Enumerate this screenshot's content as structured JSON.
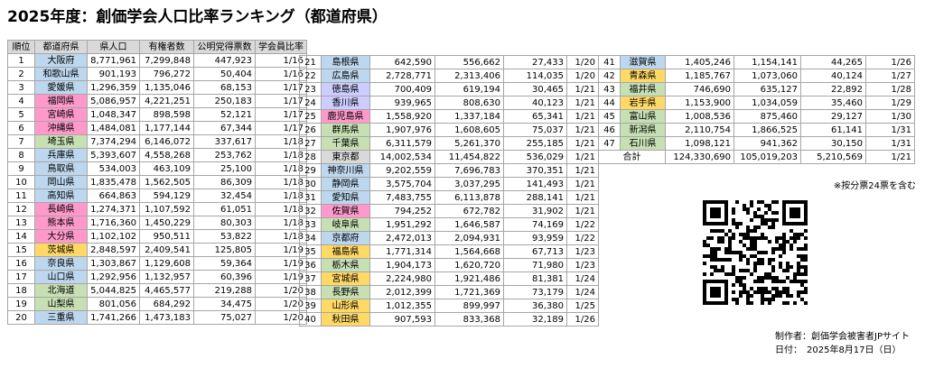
{
  "title": "2025年度：創価学会人口比率ランキング（都道府県）",
  "headers": [
    "順位",
    "都道府県",
    "県人口",
    "有権者数",
    "公明党得票数",
    "学会員比率"
  ],
  "colors": {
    "blue": "#bdd7ee",
    "pink": "#ff99cc",
    "purple": "#ccccff",
    "green": "#c6e0b4",
    "yellow": "#ffd966",
    "gray": "#d9d9d9"
  },
  "rows": [
    {
      "rank": "1",
      "pref": "大阪府",
      "pop": "8,771,961",
      "voters": "7,299,848",
      "votes": "447,923",
      "ratio": "1/16",
      "color": "blue"
    },
    {
      "rank": "2",
      "pref": "和歌山県",
      "pop": "901,193",
      "voters": "796,272",
      "votes": "50,404",
      "ratio": "1/16",
      "color": "blue"
    },
    {
      "rank": "3",
      "pref": "愛媛県",
      "pop": "1,296,359",
      "voters": "1,135,046",
      "votes": "68,153",
      "ratio": "1/17",
      "color": "blue"
    },
    {
      "rank": "4",
      "pref": "福岡県",
      "pop": "5,086,957",
      "voters": "4,221,251",
      "votes": "250,183",
      "ratio": "1/17",
      "color": "pink"
    },
    {
      "rank": "5",
      "pref": "宮崎県",
      "pop": "1,048,347",
      "voters": "898,598",
      "votes": "52,121",
      "ratio": "1/17",
      "color": "pink"
    },
    {
      "rank": "6",
      "pref": "沖縄県",
      "pop": "1,484,081",
      "voters": "1,177,144",
      "votes": "67,344",
      "ratio": "1/17",
      "color": "pink"
    },
    {
      "rank": "7",
      "pref": "埼玉県",
      "pop": "7,374,294",
      "voters": "6,146,072",
      "votes": "337,617",
      "ratio": "1/18",
      "color": "green"
    },
    {
      "rank": "8",
      "pref": "兵庫県",
      "pop": "5,393,607",
      "voters": "4,558,268",
      "votes": "253,762",
      "ratio": "1/18",
      "color": "blue"
    },
    {
      "rank": "9",
      "pref": "鳥取県",
      "pop": "534,003",
      "voters": "463,109",
      "votes": "25,100",
      "ratio": "1/18",
      "color": "blue"
    },
    {
      "rank": "10",
      "pref": "岡山県",
      "pop": "1,835,478",
      "voters": "1,562,505",
      "votes": "86,309",
      "ratio": "1/18",
      "color": "blue"
    },
    {
      "rank": "11",
      "pref": "高知県",
      "pop": "664,863",
      "voters": "594,129",
      "votes": "32,454",
      "ratio": "1/18",
      "color": "blue"
    },
    {
      "rank": "12",
      "pref": "長崎県",
      "pop": "1,274,371",
      "voters": "1,107,592",
      "votes": "61,051",
      "ratio": "1/18",
      "color": "pink"
    },
    {
      "rank": "13",
      "pref": "熊本県",
      "pop": "1,716,360",
      "voters": "1,450,229",
      "votes": "80,303",
      "ratio": "1/18",
      "color": "pink"
    },
    {
      "rank": "14",
      "pref": "大分県",
      "pop": "1,102,102",
      "voters": "950,511",
      "votes": "53,822",
      "ratio": "1/18",
      "color": "pink"
    },
    {
      "rank": "15",
      "pref": "茨城県",
      "pop": "2,848,597",
      "voters": "2,409,541",
      "votes": "125,805",
      "ratio": "1/19",
      "color": "yellow"
    },
    {
      "rank": "16",
      "pref": "奈良県",
      "pop": "1,303,867",
      "voters": "1,129,608",
      "votes": "59,364",
      "ratio": "1/19",
      "color": "blue"
    },
    {
      "rank": "17",
      "pref": "山口県",
      "pop": "1,292,956",
      "voters": "1,132,957",
      "votes": "60,396",
      "ratio": "1/19",
      "color": "blue"
    },
    {
      "rank": "18",
      "pref": "北海道",
      "pop": "5,044,825",
      "voters": "4,465,577",
      "votes": "219,288",
      "ratio": "1/20",
      "color": "green"
    },
    {
      "rank": "19",
      "pref": "山梨県",
      "pop": "801,056",
      "voters": "684,292",
      "votes": "34,475",
      "ratio": "1/20",
      "color": "green"
    },
    {
      "rank": "20",
      "pref": "三重県",
      "pop": "1,741,266",
      "voters": "1,473,183",
      "votes": "75,027",
      "ratio": "1/20",
      "color": "blue"
    },
    {
      "rank": "21",
      "pref": "島根県",
      "pop": "642,590",
      "voters": "556,662",
      "votes": "27,433",
      "ratio": "1/20",
      "color": "blue"
    },
    {
      "rank": "22",
      "pref": "広島県",
      "pop": "2,728,771",
      "voters": "2,313,406",
      "votes": "114,035",
      "ratio": "1/20",
      "color": "blue"
    },
    {
      "rank": "23",
      "pref": "徳島県",
      "pop": "700,409",
      "voters": "619,194",
      "votes": "30,465",
      "ratio": "1/21",
      "color": "purple"
    },
    {
      "rank": "24",
      "pref": "香川県",
      "pop": "939,965",
      "voters": "808,630",
      "votes": "40,123",
      "ratio": "1/21",
      "color": "purple"
    },
    {
      "rank": "25",
      "pref": "鹿児島県",
      "pop": "1,558,920",
      "voters": "1,337,184",
      "votes": "65,341",
      "ratio": "1/21",
      "color": "pink"
    },
    {
      "rank": "26",
      "pref": "群馬県",
      "pop": "1,907,976",
      "voters": "1,608,605",
      "votes": "75,037",
      "ratio": "1/21",
      "color": "green"
    },
    {
      "rank": "27",
      "pref": "千葉県",
      "pop": "6,311,579",
      "voters": "5,261,370",
      "votes": "255,185",
      "ratio": "1/21",
      "color": "green"
    },
    {
      "rank": "28",
      "pref": "東京都",
      "pop": "14,002,534",
      "voters": "11,454,822",
      "votes": "536,029",
      "ratio": "1/21",
      "color": "gray"
    },
    {
      "rank": "29",
      "pref": "神奈川県",
      "pop": "9,202,559",
      "voters": "7,696,783",
      "votes": "370,351",
      "ratio": "1/21",
      "color": "blue"
    },
    {
      "rank": "30",
      "pref": "静岡県",
      "pop": "3,575,704",
      "voters": "3,037,295",
      "votes": "141,493",
      "ratio": "1/21",
      "color": "blue"
    },
    {
      "rank": "31",
      "pref": "愛知県",
      "pop": "7,483,755",
      "voters": "6,113,878",
      "votes": "288,141",
      "ratio": "1/21",
      "color": "blue"
    },
    {
      "rank": "32",
      "pref": "佐賀県",
      "pop": "794,252",
      "voters": "672,782",
      "votes": "31,902",
      "ratio": "1/21",
      "color": "pink"
    },
    {
      "rank": "33",
      "pref": "岐阜県",
      "pop": "1,951,292",
      "voters": "1,646,587",
      "votes": "74,169",
      "ratio": "1/22",
      "color": "green"
    },
    {
      "rank": "34",
      "pref": "京都府",
      "pop": "2,472,013",
      "voters": "2,094,931",
      "votes": "93,959",
      "ratio": "1/22",
      "color": "blue"
    },
    {
      "rank": "35",
      "pref": "福島県",
      "pop": "1,771,314",
      "voters": "1,564,668",
      "votes": "67,713",
      "ratio": "1/23",
      "color": "yellow"
    },
    {
      "rank": "36",
      "pref": "栃木県",
      "pop": "1,904,173",
      "voters": "1,620,720",
      "votes": "71,980",
      "ratio": "1/23",
      "color": "green"
    },
    {
      "rank": "37",
      "pref": "宮城県",
      "pop": "2,224,980",
      "voters": "1,921,486",
      "votes": "81,381",
      "ratio": "1/24",
      "color": "yellow"
    },
    {
      "rank": "38",
      "pref": "長野県",
      "pop": "2,012,399",
      "voters": "1,721,369",
      "votes": "73,179",
      "ratio": "1/24",
      "color": "green"
    },
    {
      "rank": "39",
      "pref": "山形県",
      "pop": "1,012,355",
      "voters": "899,997",
      "votes": "36,380",
      "ratio": "1/25",
      "color": "yellow"
    },
    {
      "rank": "40",
      "pref": "秋田県",
      "pop": "907,593",
      "voters": "833,368",
      "votes": "32,189",
      "ratio": "1/26",
      "color": "yellow"
    },
    {
      "rank": "41",
      "pref": "滋賀県",
      "pop": "1,405,246",
      "voters": "1,154,141",
      "votes": "44,265",
      "ratio": "1/26",
      "color": "blue"
    },
    {
      "rank": "42",
      "pref": "青森県",
      "pop": "1,185,767",
      "voters": "1,073,060",
      "votes": "40,124",
      "ratio": "1/27",
      "color": "yellow"
    },
    {
      "rank": "43",
      "pref": "福井県",
      "pop": "746,690",
      "voters": "635,127",
      "votes": "22,892",
      "ratio": "1/28",
      "color": "green"
    },
    {
      "rank": "44",
      "pref": "岩手県",
      "pop": "1,153,900",
      "voters": "1,034,059",
      "votes": "35,460",
      "ratio": "1/29",
      "color": "yellow"
    },
    {
      "rank": "45",
      "pref": "富山県",
      "pop": "1,008,536",
      "voters": "875,460",
      "votes": "29,127",
      "ratio": "1/30",
      "color": "green"
    },
    {
      "rank": "46",
      "pref": "新潟県",
      "pop": "2,110,754",
      "voters": "1,866,525",
      "votes": "61,141",
      "ratio": "1/31",
      "color": "green"
    },
    {
      "rank": "47",
      "pref": "石川県",
      "pop": "1,098,121",
      "voters": "941,362",
      "votes": "30,150",
      "ratio": "1/31",
      "color": "green"
    }
  ],
  "total": {
    "label": "合計",
    "pop": "124,330,690",
    "voters": "105,019,203",
    "votes": "5,210,569",
    "ratio": "1/21"
  },
  "note": "※按分票24票を含む",
  "footer": {
    "author": "制作者：創価学会被害者JPサイト",
    "date": "日付：　2025年8月17日（日）"
  }
}
